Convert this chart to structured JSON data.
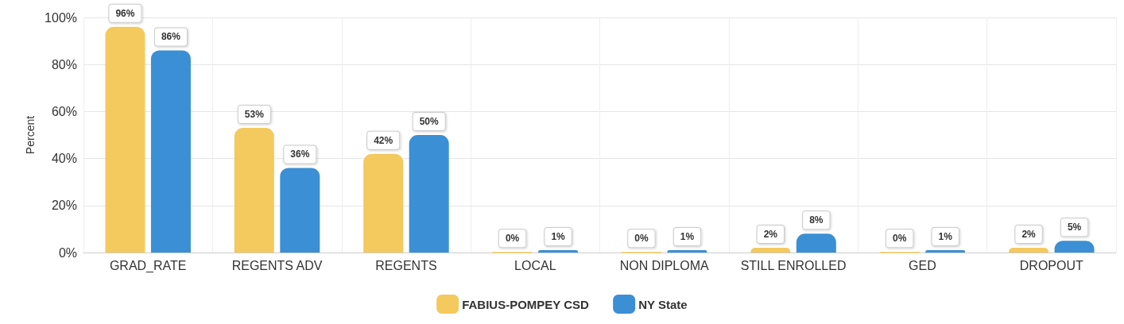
{
  "chart_data": {
    "type": "bar",
    "ylabel": "Percent",
    "categories": [
      "GRAD_RATE",
      "REGENTS ADV",
      "REGENTS",
      "LOCAL",
      "NON DIPLOMA",
      "STILL ENROLLED",
      "GED",
      "DROPOUT"
    ],
    "series": [
      {
        "name": "FABIUS-POMPEY CSD",
        "color": "#f4c95d",
        "values": [
          96,
          53,
          42,
          0,
          0,
          2,
          0,
          2
        ],
        "value_labels": [
          "96%",
          "53%",
          "42%",
          "0%",
          "0%",
          "2%",
          "0%",
          "2%"
        ]
      },
      {
        "name": "NY State",
        "color": "#3b8fd4",
        "values": [
          86,
          36,
          50,
          1,
          1,
          8,
          1,
          5
        ],
        "value_labels": [
          "86%",
          "36%",
          "50%",
          "1%",
          "1%",
          "8%",
          "1%",
          "5%"
        ]
      }
    ],
    "ylim": [
      0,
      100
    ],
    "yticks": [
      {
        "value": 0,
        "label": "0%"
      },
      {
        "value": 20,
        "label": "20%"
      },
      {
        "value": 40,
        "label": "40%"
      },
      {
        "value": 60,
        "label": "60%"
      },
      {
        "value": 80,
        "label": "80%"
      },
      {
        "value": 100,
        "label": "100%"
      }
    ],
    "grid": true,
    "legend": "bottom"
  }
}
